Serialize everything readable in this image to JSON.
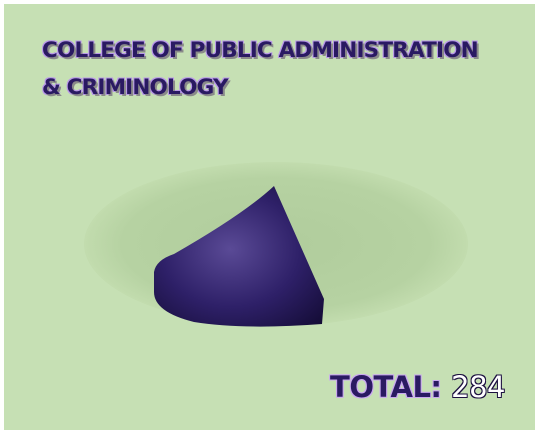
{
  "header": {
    "title_line1": "COLLEGE OF PUBLIC ADMINISTRATION",
    "title_line2": "& CRIMINOLOGY"
  },
  "total": {
    "label": "TOTAL:",
    "value": "284"
  },
  "colors": {
    "background": "#c6e0b4",
    "slice": "#2e2068",
    "title_text": "#2a1a62"
  },
  "chart_data": {
    "type": "pie",
    "title": "COLLEGE OF PUBLIC ADMINISTRATION & CRIMINOLOGY",
    "total": 284,
    "slices": [
      {
        "fraction": 0.19,
        "color": "#2e2068",
        "shown": true
      },
      {
        "fraction": 0.81,
        "color": "#b6d2a2",
        "shown": false
      }
    ],
    "legend": "none",
    "three_d": true
  }
}
